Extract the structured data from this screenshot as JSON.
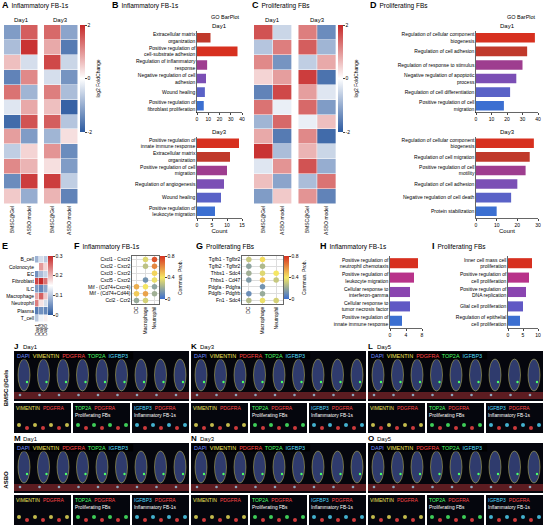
{
  "chart_data": [
    {
      "panel": "A",
      "type": "heatmap",
      "title": "Inflammatory FB-1s",
      "tick_labels": "x",
      "colorbar": {
        "title": "log2 FoldChange",
        "range": [
          -2,
          2
        ],
        "ticks": [
          -2,
          0,
          2
        ]
      },
      "subplots": [
        {
          "title": "Day1",
          "columns": [
            "BMSC@Gel",
            "ASBO model"
          ],
          "cells": [
            [
              -1.2,
              1.5
            ],
            [
              -0.8,
              1.9
            ],
            [
              0.6,
              -0.4
            ],
            [
              -1.5,
              1.1
            ],
            [
              1.3,
              -0.9
            ],
            [
              -0.3,
              0.8
            ],
            [
              -1.8,
              1.6
            ],
            [
              0.9,
              -1.2
            ],
            [
              -0.6,
              0.4
            ],
            [
              1.1,
              0.7
            ],
            [
              -1.4,
              1.8
            ],
            [
              0.5,
              -1.0
            ]
          ]
        },
        {
          "title": "Day3",
          "columns": [
            "BMSC@Gel",
            "ASBO model"
          ],
          "cells": [
            [
              1.4,
              -1.1
            ],
            [
              0.8,
              -1.6
            ],
            [
              1.7,
              -0.5
            ],
            [
              -0.4,
              -1.3
            ],
            [
              1.2,
              -0.8
            ],
            [
              0.6,
              -1.9
            ],
            [
              1.5,
              -0.7
            ],
            [
              -0.9,
              0.3
            ],
            [
              1.0,
              -1.4
            ],
            [
              0.3,
              -1.2
            ],
            [
              1.8,
              -0.6
            ],
            [
              0.7,
              -1.5
            ]
          ]
        }
      ]
    },
    {
      "panel": "B",
      "type": "bar",
      "orientation": "horizontal",
      "title": "Inflammatory FB-1s",
      "subtitle": "GO BarPlot",
      "xlabel": "Count",
      "subplots": [
        {
          "title": "Day1",
          "categories": [
            "Extracellular matrix organization",
            "Positive regulation of cell-substrate adhesion",
            "Regulation of inflammatory response",
            "Negative regulation of cell adhesion",
            "Wound healing",
            "Positive regulation of fibroblast proliferation"
          ],
          "values": [
            12,
            36,
            9,
            8,
            7,
            6
          ],
          "colors": [
            "#c0392b",
            "#d7301f",
            "#9e3d8f",
            "#7b4fb5",
            "#5a62c7",
            "#3b6fd1"
          ],
          "xlim": [
            0,
            40
          ],
          "xticks": [
            0,
            10,
            20,
            30,
            40
          ]
        },
        {
          "title": "Day3",
          "categories": [
            "Positive regulation of innate immune response",
            "Extracellular matrix organization",
            "Positive regulation of cell migration",
            "Regulation of angiogenesis",
            "Wound healing",
            "Positive regulation of leukocyte migration"
          ],
          "values": [
            14,
            11,
            10,
            9,
            8,
            6
          ],
          "colors": [
            "#d7301f",
            "#c0392b",
            "#9e3d8f",
            "#7b4fb5",
            "#5a62c7",
            "#3b6fd1"
          ],
          "xlim": [
            0,
            15
          ],
          "xticks": [
            0,
            5,
            10,
            15
          ]
        }
      ]
    },
    {
      "panel": "C",
      "type": "heatmap",
      "title": "Proliferating FBs",
      "tick_labels": "x",
      "colorbar": {
        "title": "log2 FoldChange",
        "range": [
          -2,
          2
        ],
        "ticks": [
          -2,
          0,
          2
        ]
      },
      "subplots": [
        {
          "title": "Day1",
          "columns": [
            "BMSC@Gel",
            "ASBO model"
          ],
          "cells": [
            [
              1.6,
              -0.5
            ],
            [
              -0.7,
              1.2
            ],
            [
              1.1,
              -1.3
            ],
            [
              0.4,
              0.9
            ],
            [
              -1.5,
              1.7
            ],
            [
              1.3,
              -0.2
            ],
            [
              -0.9,
              1.4
            ],
            [
              0.8,
              -1.6
            ],
            [
              1.9,
              -0.8
            ],
            [
              -0.3,
              1.0
            ],
            [
              0.6,
              -1.1
            ],
            [
              -1.2,
              0.5
            ]
          ]
        },
        {
          "title": "Day3",
          "columns": [
            "BMSC@Gel",
            "ASBO model"
          ],
          "cells": [
            [
              1.2,
              -1.4
            ],
            [
              1.5,
              -0.9
            ],
            [
              -0.6,
              0.8
            ],
            [
              1.8,
              -1.7
            ],
            [
              0.9,
              -0.3
            ],
            [
              1.4,
              -1.2
            ],
            [
              -0.2,
              0.6
            ],
            [
              1.1,
              -1.8
            ],
            [
              0.7,
              -0.5
            ],
            [
              1.6,
              -1.0
            ],
            [
              -0.8,
              1.3
            ],
            [
              1.0,
              -1.5
            ]
          ]
        }
      ]
    },
    {
      "panel": "D",
      "type": "bar",
      "orientation": "horizontal",
      "title": "Proliferating FBs",
      "subtitle": "GO BarPlot",
      "xlabel": "Count",
      "subplots": [
        {
          "title": "Day1",
          "categories": [
            "Regulation of cellular component biogenesis",
            "Regulation of cell adhesion",
            "Regulation of response to stimulus",
            "Negative regulation of apoptotic process",
            "Regulation of cell differentiation",
            "Positive regulation of cell migration"
          ],
          "values": [
            38,
            33,
            30,
            26,
            22,
            18
          ],
          "colors": [
            "#d7301f",
            "#c0392b",
            "#9e3d8f",
            "#7b4fb5",
            "#5a62c7",
            "#3b6fd1"
          ],
          "xlim": [
            0,
            40
          ],
          "xticks": [
            0,
            10,
            20,
            30,
            40
          ]
        },
        {
          "title": "Day3",
          "categories": [
            "Regulation of cellular component biogenesis",
            "Regulation of cell migration",
            "Positive regulation of cell motility",
            "Regulation of cell adhesion",
            "Negative regulation of cell death",
            "Protein stabilization"
          ],
          "values": [
            28,
            26,
            24,
            20,
            17,
            10
          ],
          "colors": [
            "#d7301f",
            "#c0392b",
            "#9e3d8f",
            "#7b4fb5",
            "#5a62c7",
            "#3b6fd1"
          ],
          "xlim": [
            0,
            30
          ],
          "xticks": [
            0,
            10,
            20,
            30
          ]
        }
      ]
    },
    {
      "panel": "E",
      "type": "heatmap",
      "colorbar": {
        "range": [
          0,
          0.3
        ],
        "ticks": [
          0,
          0.1,
          0.2,
          0.3
        ]
      },
      "rows": [
        "B_cell",
        "Colonocyte",
        "EC",
        "Fibroblast",
        "ILC",
        "Macrophage",
        "Neutrophil",
        "Plasma",
        "T_cell"
      ],
      "columns": [
        "Day1",
        "Day3",
        "Day5"
      ],
      "cells": [
        [
          0.08,
          0.12,
          0.1
        ],
        [
          0.15,
          0.22,
          0.18
        ],
        [
          0.05,
          0.09,
          0.11
        ],
        [
          0.28,
          0.3,
          0.25
        ],
        [
          0.06,
          0.04,
          0.07
        ],
        [
          0.21,
          0.26,
          0.19
        ],
        [
          0.24,
          0.17,
          0.12
        ],
        [
          0.03,
          0.05,
          0.04
        ],
        [
          0.1,
          0.14,
          0.16
        ]
      ]
    },
    {
      "panel": "F",
      "type": "dot",
      "title": "Inflammatory FB-1s",
      "grid": true,
      "colorbar": {
        "title": "Commun. Prob.",
        "range": [
          0,
          0.8
        ],
        "ticks": [
          0,
          0.4,
          0.8
        ]
      },
      "rows": [
        "Cxcl1 - Cxcr2",
        "Cxcl2 - Cxcr2",
        "Cxcl3 - Cxcr2",
        "Cxcl5 - Cxcr2",
        "Mif - (Cd74+Cxcr4)",
        "Mif - (Cd74+Cd44)",
        "Ccl2 - Ccr2"
      ],
      "columns": [
        "DC",
        "Macrophage",
        "Neutrophil"
      ],
      "values": [
        [
          null,
          0.35,
          0.72
        ],
        [
          null,
          0.28,
          0.61
        ],
        [
          null,
          null,
          0.44
        ],
        [
          null,
          0.12,
          0.38
        ],
        [
          0.52,
          0.4,
          0.18
        ],
        [
          0.46,
          0.55,
          0.22
        ],
        [
          0.2,
          0.33,
          null
        ]
      ]
    },
    {
      "panel": "G",
      "type": "dot",
      "title": "Proliferating FBs",
      "grid": true,
      "colorbar": {
        "title": "Commun. Prob.",
        "range": [
          0,
          0.8
        ],
        "ticks": [
          0,
          0.4,
          0.8
        ]
      },
      "rows": [
        "Tgfb1 - Tgfbr2",
        "Tgfb2 - Tgfbr2",
        "Thbs1 - Sdc4",
        "Thbs1 - Cd47",
        "Pdgfa - Pdgfra",
        "Pdgfb - Pdgfrb",
        "Fn1 - Sdc4"
      ],
      "columns": [
        "DC",
        "Macrophage",
        "Neutrophil"
      ],
      "values": [
        [
          0.3,
          0.42,
          null
        ],
        [
          0.18,
          0.25,
          null
        ],
        [
          0.22,
          0.35,
          0.4
        ],
        [
          0.15,
          0.48,
          0.3
        ],
        [
          null,
          0.12,
          null
        ],
        [
          0.1,
          0.2,
          null
        ],
        [
          0.26,
          0.38,
          0.33
        ]
      ]
    },
    {
      "panel": "H",
      "type": "bar",
      "orientation": "horizontal",
      "title": "Inflammatory FB-1s",
      "categories": [
        "Positive regulation of neutrophil chemotaxis",
        "Positive regulation of leukocyte migration",
        "Cellular response to interferon-gamma",
        "Cellular response to tumor necrosis factor",
        "Positive regulation of innate immune response"
      ],
      "values": [
        7,
        6,
        5,
        5,
        3
      ],
      "colors": [
        "#d7301f",
        "#b8338a",
        "#8a45b0",
        "#6058c4",
        "#3b6fd1"
      ],
      "xlim": [
        0,
        8
      ],
      "xticks": [
        0,
        4,
        8
      ]
    },
    {
      "panel": "I",
      "type": "bar",
      "orientation": "horizontal",
      "title": "Proliferating FBs",
      "categories": [
        "Inner cell mass cell proliferation",
        "Positive regulation of cell proliferation",
        "Positive regulation of DNA replication",
        "Glial cell proliferation",
        "Regulation of epithelial cell proliferation"
      ],
      "values": [
        8,
        7,
        6,
        5,
        4
      ],
      "colors": [
        "#d7301f",
        "#b8338a",
        "#8a45b0",
        "#6058c4",
        "#3b6fd1"
      ],
      "xlim": [
        0,
        10
      ],
      "xticks": [
        0,
        5,
        10
      ]
    }
  ],
  "microscopy": {
    "stains": [
      {
        "name": "DAPI",
        "color": "#6f8cff"
      },
      {
        "name": "VIMENTIN",
        "color": "#f2e85c"
      },
      {
        "name": "PDGFRA",
        "color": "#ff4747"
      },
      {
        "name": "TOP2A",
        "color": "#4cff6a"
      },
      {
        "name": "IGFBP3",
        "color": "#52dcff"
      }
    ],
    "insets": [
      {
        "stains": [
          "VIMENTIN",
          "PDGFRA"
        ]
      },
      {
        "stains": [
          "TOP2A",
          "PDGFRA"
        ],
        "label": "Proliferating FBs"
      },
      {
        "stains": [
          "IGFBP3",
          "PDGFRA"
        ],
        "label": "Inflammatory FB-1s"
      }
    ],
    "groups": [
      {
        "label": "BMSC@Gels",
        "panels": [
          {
            "panel": "J",
            "day": "Day1"
          },
          {
            "panel": "K",
            "day": "Day3"
          },
          {
            "panel": "L",
            "day": "Day5"
          }
        ]
      },
      {
        "label": "ASBO",
        "panels": [
          {
            "panel": "M",
            "day": "Day1"
          },
          {
            "panel": "N",
            "day": "Day3"
          },
          {
            "panel": "O",
            "day": "Day5"
          }
        ]
      }
    ]
  }
}
